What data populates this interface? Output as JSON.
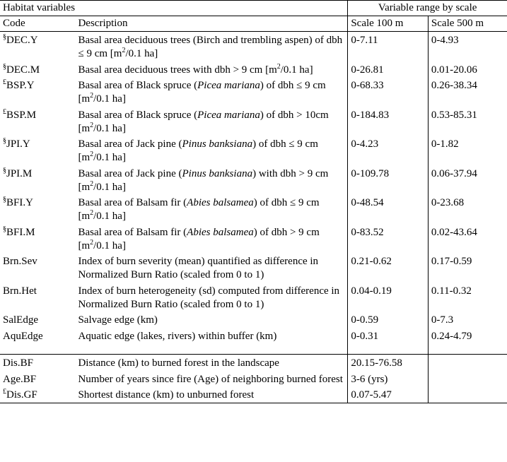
{
  "header": {
    "habitat": "Habitat  variables",
    "range": "Variable range by scale",
    "code": "Code",
    "description": "Description",
    "scale100": "Scale 100 m",
    "scale500": "Scale 500 m"
  },
  "rows1": [
    {
      "sup": "§",
      "code": "DEC.Y",
      "desc": "Basal area deciduous trees (Birch and trembling aspen) of dbh ≤ 9 cm [m<sup>2</sup>/0.1 ha]",
      "s100": "0-7.11",
      "s500": "0-4.93"
    },
    {
      "sup": "§",
      "code": "DEC.M",
      "desc": "Basal area deciduous trees with dbh > 9 cm [m<sup>2</sup>/0.1 ha]",
      "s100": "0-26.81",
      "s500": "0.01-20.06"
    },
    {
      "sup": "£",
      "code": "BSP.Y",
      "desc": "Basal area of Black spruce (<span class=\"italic\">Picea mariana</span>) of dbh ≤ 9 cm [m<sup>2</sup>/0.1 ha]",
      "s100": "0-68.33",
      "s500": "0.26-38.34"
    },
    {
      "sup": "£",
      "code": "BSP.M",
      "desc": "Basal area of Black spruce (<span class=\"italic\">Picea mariana</span>) of dbh > 10cm [m<sup>2</sup>/0.1 ha]",
      "s100": "0-184.83",
      "s500": "0.53-85.31"
    },
    {
      "sup": "§",
      "code": "JPI.Y",
      "desc": "Basal area of Jack pine (<span class=\"italic\">Pinus banksiana</span>) of dbh ≤ 9 cm [m<sup>2</sup>/0.1 ha]",
      "s100": "0-4.23",
      "s500": "0-1.82"
    },
    {
      "sup": "§",
      "code": "JPI.M",
      "desc": "Basal area of Jack pine (<span class=\"italic\">Pinus banksiana</span>) with dbh > 9 cm [m<sup>2</sup>/0.1 ha]",
      "s100": "0-109.78",
      "s500": "0.06-37.94"
    },
    {
      "sup": "§",
      "code": "BFI.Y",
      "desc": "Basal area of Balsam fir (<span class=\"italic\">Abies balsamea</span>) of dbh ≤ 9 cm [m<sup>2</sup>/0.1 ha]",
      "s100": "0-48.54",
      "s500": "0-23.68"
    },
    {
      "sup": "§",
      "code": "BFI.M",
      "desc": "Basal area of Balsam fir (<span class=\"italic\">Abies balsamea</span>) of dbh > 9 cm [m<sup>2</sup>/0.1 ha]",
      "s100": "0-83.52",
      "s500": "0.02-43.64"
    },
    {
      "sup": "",
      "code": "Brn.Sev",
      "desc": "Index of burn severity (mean) quantified as difference in Normalized Burn Ratio (scaled from 0 to 1)",
      "s100": "0.21-0.62",
      "s500": "0.17-0.59"
    },
    {
      "sup": "",
      "code": "Brn.Het",
      "desc": "Index of burn heterogeneity (sd) computed from difference in Normalized Burn Ratio (scaled from 0 to 1)",
      "s100": "0.04-0.19",
      "s500": "0.11-0.32"
    },
    {
      "sup": "",
      "code": "SalEdge",
      "desc": "Salvage edge (km)",
      "s100": "0-0.59",
      "s500": "0-7.3"
    },
    {
      "sup": "",
      "code": "AquEdge",
      "desc": "Aquatic edge (lakes, rivers) within buffer (km)",
      "s100": "0-0.31",
      "s500": "0.24-4.79"
    }
  ],
  "rows2": [
    {
      "sup": "",
      "code": "Dis.BF",
      "desc": "Distance (km) to burned forest in the landscape",
      "s100": "20.15-76.58",
      "s500": ""
    },
    {
      "sup": "",
      "code": "Age.BF",
      "desc": "Number of years since fire (Age) of neighboring burned forest",
      "s100": "3-6 (yrs)",
      "s500": ""
    },
    {
      "sup": "£",
      "code": "Dis.GF",
      "desc": "Shortest distance (km) to unburned forest",
      "s100": "0.07-5.47",
      "s500": ""
    }
  ]
}
